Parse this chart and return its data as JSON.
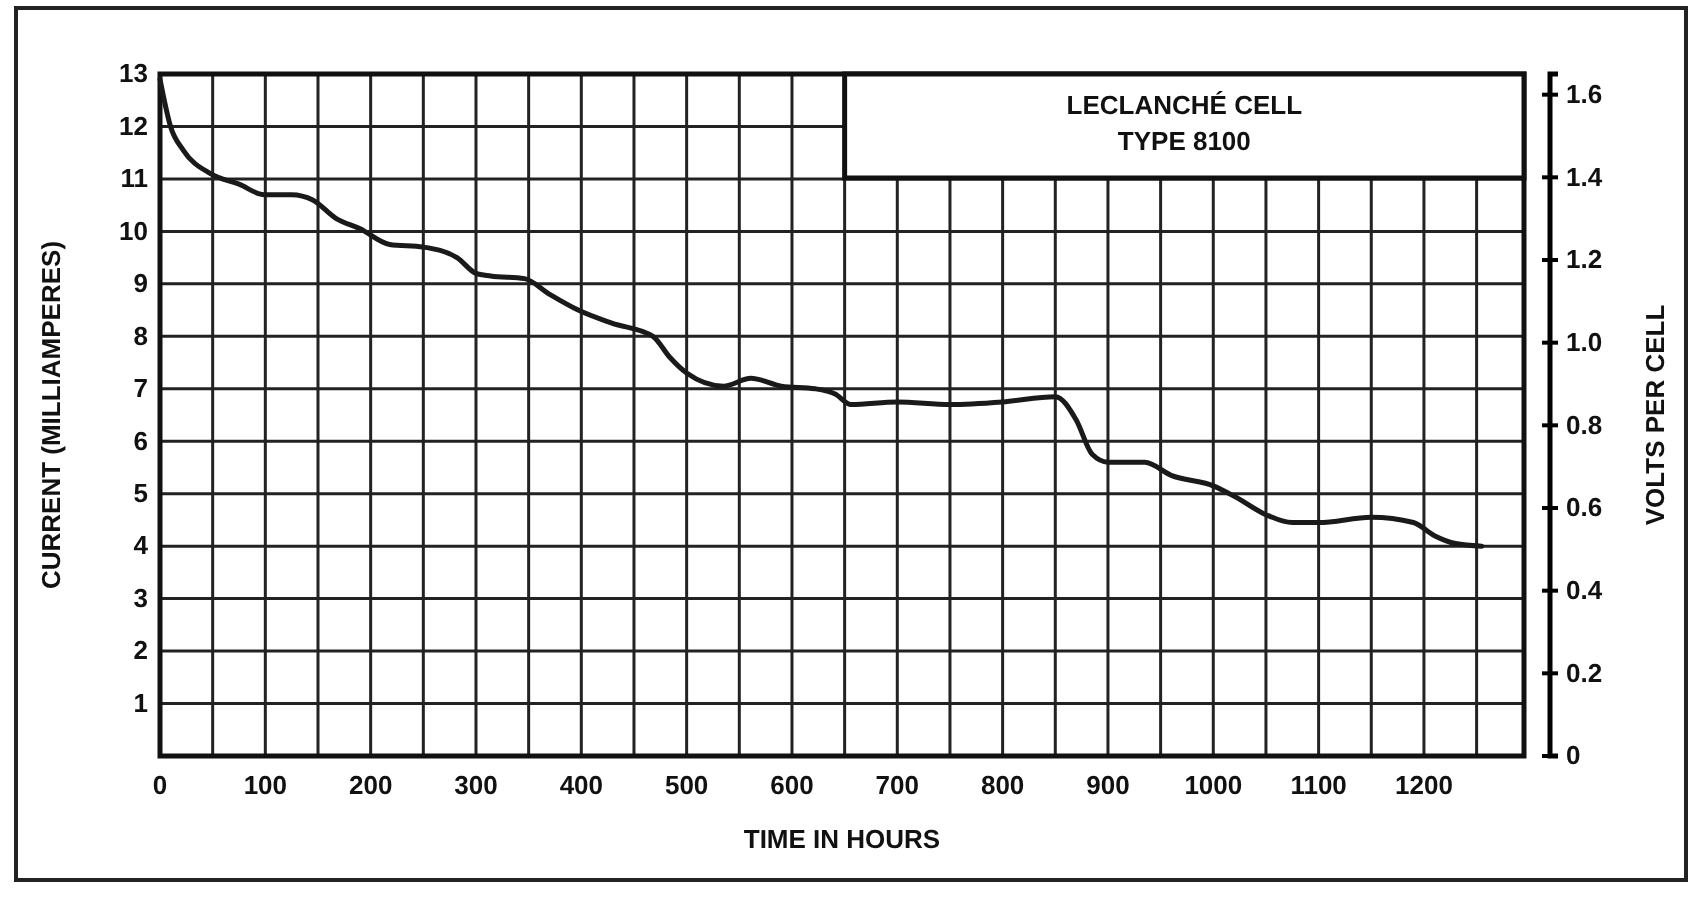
{
  "chart_data": {
    "type": "line",
    "title": "LECLANCHÉ CELL",
    "subtitle": "TYPE 8100",
    "xlabel": "TIME IN HOURS",
    "ylabel": "CURRENT (MILLIAMPERES)",
    "y2label": "VOLTS PER CELL",
    "xlim": [
      0,
      1295
    ],
    "xticks": [
      0,
      100,
      200,
      300,
      400,
      500,
      600,
      700,
      800,
      900,
      1000,
      1100,
      1200
    ],
    "ylim": [
      0,
      13
    ],
    "yticks": [
      {
        "value": 0,
        "label": null
      },
      1,
      2,
      3,
      4,
      5,
      6,
      7,
      8,
      9,
      10,
      11,
      12,
      13
    ],
    "y2lim": [
      0,
      1.65
    ],
    "y2ticks": [
      0,
      0.2,
      0.4,
      0.6,
      0.8,
      {
        "value": 1.0,
        "label": "1.0"
      },
      1.2,
      1.4,
      1.6
    ],
    "grid": true,
    "marker": "none",
    "line_style": "solid",
    "series": [
      {
        "color": "#1a1a1a",
        "x": [
          0,
          10,
          22,
          48,
          75,
          99,
          125,
          145,
          167,
          190,
          218,
          250,
          282,
          300,
          314,
          346,
          370,
          397,
          429,
          468,
          484,
          500,
          535,
          561,
          590,
          622,
          641,
          656,
          700,
          750,
          800,
          850,
          870,
          885,
          900,
          935,
          960,
          1000,
          1020,
          1050,
          1075,
          1100,
          1150,
          1190,
          1210,
          1230,
          1255
        ],
        "values": [
          12.9,
          12.0,
          11.55,
          11.1,
          10.9,
          10.7,
          10.7,
          10.6,
          10.25,
          10.05,
          9.75,
          9.7,
          9.5,
          9.2,
          9.15,
          9.1,
          8.8,
          8.5,
          8.25,
          8.0,
          7.6,
          7.3,
          7.05,
          7.2,
          7.05,
          7.0,
          6.9,
          6.7,
          6.75,
          6.7,
          6.75,
          6.85,
          6.4,
          5.75,
          5.6,
          5.6,
          5.35,
          5.15,
          4.95,
          4.6,
          4.45,
          4.45,
          4.55,
          4.45,
          4.2,
          4.05,
          4.0
        ]
      }
    ]
  }
}
